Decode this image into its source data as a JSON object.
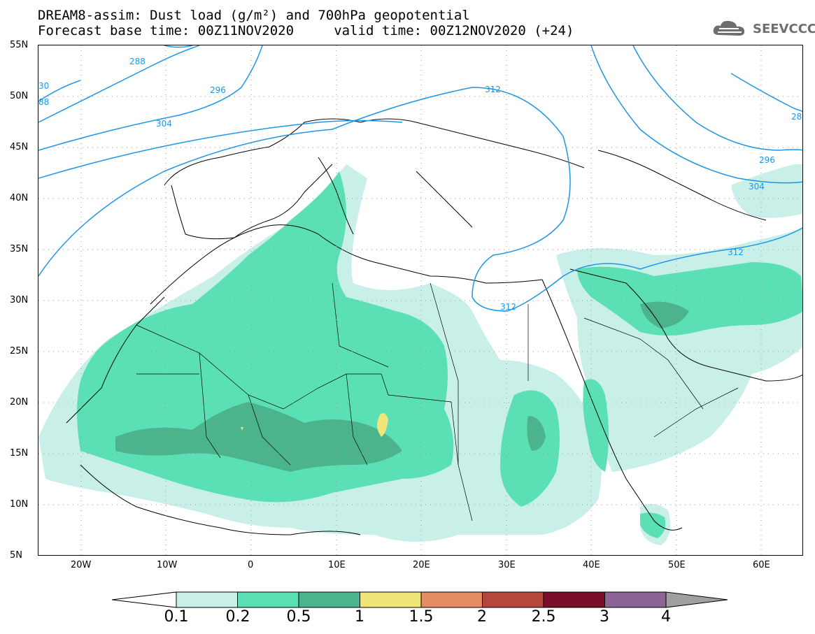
{
  "title": {
    "line1": "DREAM8-assim: Dust load (g/m²) and 700hPa geopotential",
    "line2": "Forecast base time: 00Z11NOV2020     valid time: 00Z12NOV2020 (+24)"
  },
  "logo": {
    "text": "SEEVCCC",
    "icon": "cloud-icon"
  },
  "map": {
    "lon_range": [
      -25,
      65
    ],
    "lat_range": [
      5,
      55
    ],
    "lat_ticks": [
      "55N",
      "50N",
      "45N",
      "40N",
      "35N",
      "30N",
      "25N",
      "20N",
      "15N",
      "10N",
      "5N"
    ],
    "lon_ticks": [
      "20W",
      "10W",
      "0",
      "10E",
      "20E",
      "30E",
      "40E",
      "50E",
      "60E"
    ],
    "contour_labels": [
      "288",
      "296",
      "304",
      "312",
      "312",
      "312",
      "296",
      "304",
      "28",
      "30",
      "88"
    ]
  },
  "legend": {
    "labels": [
      "0.1",
      "0.2",
      "0.5",
      "1",
      "1.5",
      "2",
      "2.5",
      "3",
      "4"
    ],
    "colors": [
      "#c8f0e8",
      "#5ae0b4",
      "#4cb48c",
      "#f0e678",
      "#e68c64",
      "#b4463c",
      "#7a0f2a",
      "#8c6496",
      "#a0a0a0"
    ]
  }
}
